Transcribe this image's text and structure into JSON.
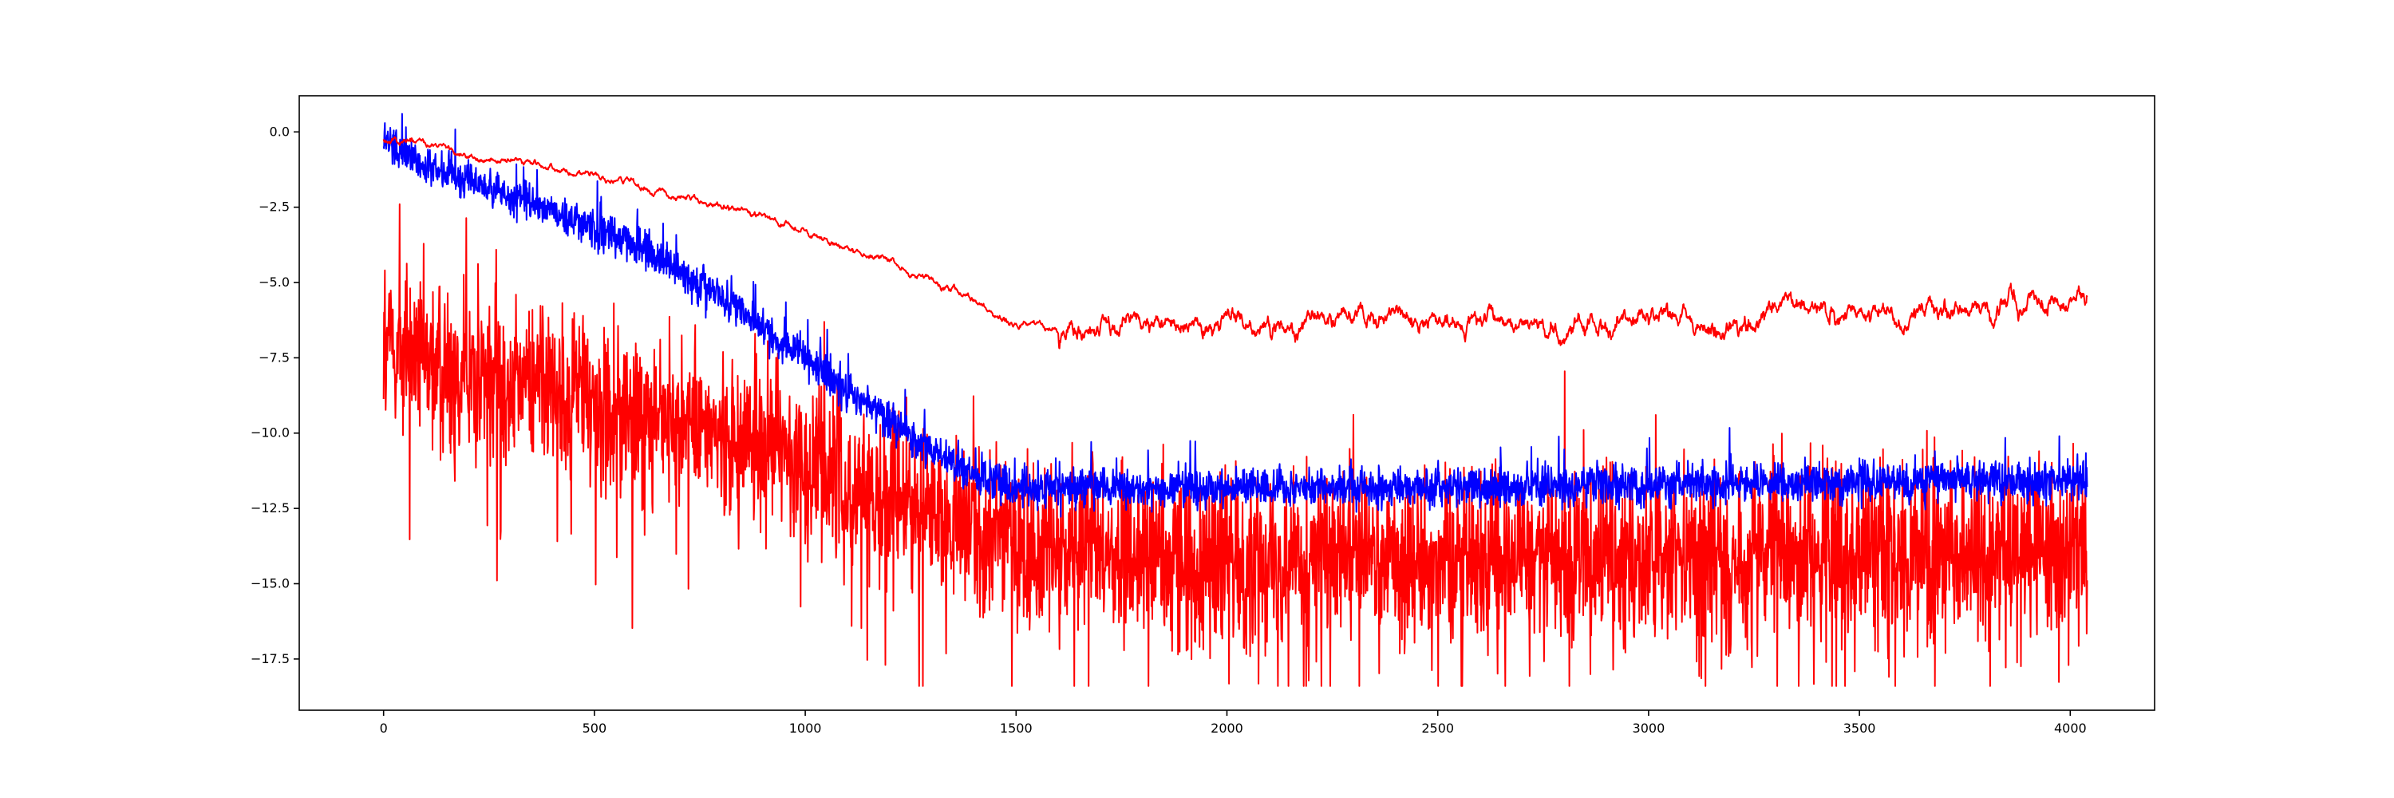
{
  "chart_data": {
    "type": "line",
    "title": "",
    "xlabel": "",
    "ylabel": "",
    "xlim": [
      -200,
      4200
    ],
    "ylim": [
      -19.2,
      1.2
    ],
    "x_ticks": [
      0,
      500,
      1000,
      1500,
      2000,
      2500,
      3000,
      3500,
      4000
    ],
    "y_ticks": [
      0.0,
      -2.5,
      -5.0,
      -7.5,
      -10.0,
      -12.5,
      -15.0,
      -17.5
    ],
    "x_tick_labels": [
      "0",
      "500",
      "1000",
      "1500",
      "2000",
      "2500",
      "3000",
      "3500",
      "4000"
    ],
    "y_tick_labels": [
      "0.0",
      "−2.5",
      "−5.0",
      "−7.5",
      "−10.0",
      "−12.5",
      "−15.0",
      "−17.5"
    ],
    "grid": false,
    "legend": "none",
    "x_range": [
      0,
      4040
    ],
    "series": [
      {
        "color": "#0000ff",
        "style": "noisy",
        "noise": 0.55,
        "x": [
          0,
          50,
          100,
          200,
          300,
          400,
          500,
          600,
          700,
          800,
          900,
          1000,
          1100,
          1200,
          1300,
          1400,
          1500,
          1600,
          2000,
          2500,
          3000,
          3500,
          4040
        ],
        "y": [
          -0.2,
          -0.7,
          -1.1,
          -1.6,
          -2.1,
          -2.6,
          -3.2,
          -3.8,
          -4.6,
          -5.5,
          -6.5,
          -7.6,
          -8.6,
          -9.6,
          -10.6,
          -11.4,
          -11.8,
          -11.8,
          -11.8,
          -11.8,
          -11.7,
          -11.6,
          -11.6
        ]
      },
      {
        "color": "#ff0000",
        "style": "smooth",
        "noise": 0.1,
        "x": [
          0,
          100,
          200,
          300,
          400,
          500,
          600,
          700,
          800,
          900,
          1000,
          1100,
          1200,
          1300,
          1400,
          1500,
          1600,
          1700,
          1800,
          1900,
          2000,
          2200,
          2400,
          2600,
          2800,
          3000,
          3200,
          3400,
          3600,
          3800,
          4040
        ],
        "y": [
          -0.2,
          -0.5,
          -0.75,
          -1.0,
          -1.2,
          -1.45,
          -1.75,
          -2.1,
          -2.45,
          -2.85,
          -3.3,
          -3.85,
          -4.4,
          -5.0,
          -5.7,
          -6.4,
          -6.6,
          -6.55,
          -6.45,
          -6.4,
          -6.5,
          -6.4,
          -6.4,
          -6.3,
          -6.2,
          -6.2,
          -6.1,
          -6.0,
          -5.9,
          -5.85,
          -5.6
        ]
      },
      {
        "color": "#ff0000",
        "style": "spiky",
        "noise": 1.4,
        "x": [
          0,
          100,
          200,
          300,
          400,
          500,
          600,
          700,
          800,
          900,
          1000,
          1100,
          1200,
          1300,
          1400,
          1500,
          1600,
          2000,
          2500,
          3000,
          3500,
          4040
        ],
        "y": [
          -7.0,
          -7.5,
          -7.9,
          -8.3,
          -8.6,
          -9.0,
          -9.4,
          -9.7,
          -10.0,
          -10.5,
          -10.9,
          -11.6,
          -12.2,
          -12.8,
          -13.3,
          -13.7,
          -14.0,
          -14.2,
          -14.2,
          -14.1,
          -14.0,
          -13.9
        ]
      }
    ]
  }
}
